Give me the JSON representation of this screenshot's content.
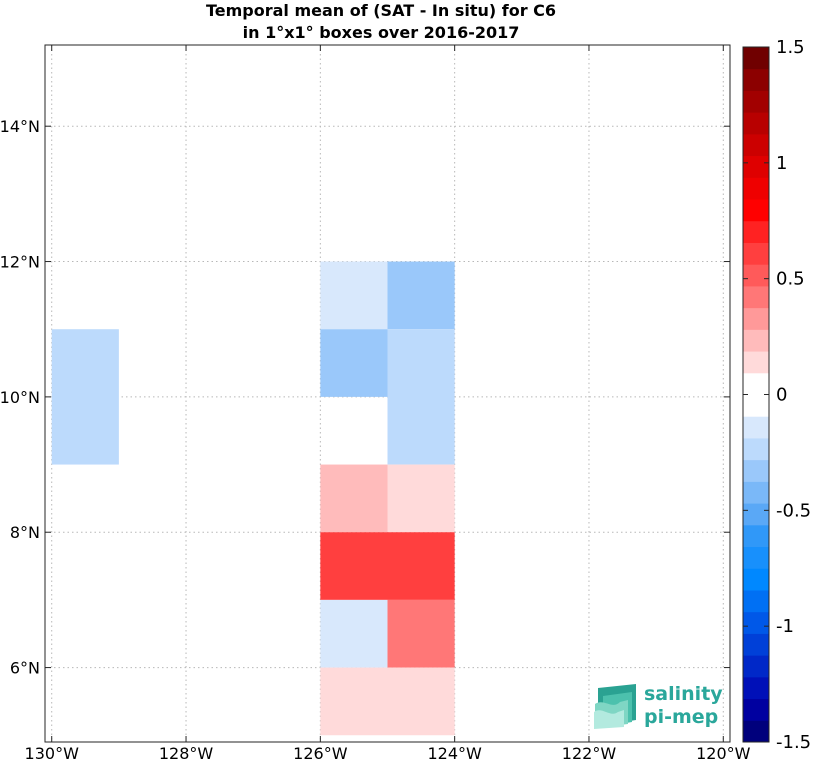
{
  "chart_data": {
    "type": "heatmap",
    "title_line1": "Temporal mean of (SAT - In situ) for C6",
    "title_line2": "in 1°x1° boxes over 2016-2017",
    "xlim": [
      -130.1,
      -119.9
    ],
    "ylim": [
      4.9,
      15.2
    ],
    "x_ticks": [
      -130,
      -128,
      -126,
      -124,
      -122,
      -120
    ],
    "x_tick_labels": [
      "130°W",
      "128°W",
      "126°W",
      "124°W",
      "122°W",
      "120°W"
    ],
    "y_ticks": [
      6,
      8,
      10,
      12,
      14
    ],
    "y_tick_labels": [
      "6°N",
      "8°N",
      "10°N",
      "12°N",
      "14°N"
    ],
    "grid": true,
    "cells": [
      {
        "lon": [
          -130,
          -129
        ],
        "lat": [
          9,
          11
        ],
        "value": -0.25
      },
      {
        "lon": [
          -126,
          -125
        ],
        "lat": [
          11,
          12
        ],
        "value": -0.15
      },
      {
        "lon": [
          -125,
          -124
        ],
        "lat": [
          11,
          12
        ],
        "value": -0.35
      },
      {
        "lon": [
          -126,
          -125
        ],
        "lat": [
          10,
          11
        ],
        "value": -0.35
      },
      {
        "lon": [
          -125,
          -124
        ],
        "lat": [
          9,
          11
        ],
        "value": -0.25
      },
      {
        "lon": [
          -126,
          -125
        ],
        "lat": [
          8,
          9
        ],
        "value": 0.25
      },
      {
        "lon": [
          -125,
          -124
        ],
        "lat": [
          8,
          9
        ],
        "value": 0.15
      },
      {
        "lon": [
          -126,
          -124
        ],
        "lat": [
          7,
          8
        ],
        "value": 0.65
      },
      {
        "lon": [
          -126,
          -125
        ],
        "lat": [
          6,
          7
        ],
        "value": -0.15
      },
      {
        "lon": [
          -125,
          -124
        ],
        "lat": [
          6,
          7
        ],
        "value": 0.45
      },
      {
        "lon": [
          -126,
          -124
        ],
        "lat": [
          5,
          6
        ],
        "value": 0.15
      }
    ],
    "colorbar": {
      "range": [
        -1.5,
        1.5
      ],
      "ticks": [
        -1.5,
        -1,
        -0.5,
        0,
        0.5,
        1,
        1.5
      ],
      "tick_labels": [
        "-1.5",
        "-1",
        "-0.5",
        "0",
        "0.5",
        "1",
        "1.5"
      ],
      "colors_bottom_to_top": [
        "#00007c",
        "#0000a0",
        "#0010b8",
        "#0028c8",
        "#0040d8",
        "#0058e8",
        "#0070f4",
        "#0088ff",
        "#1890fc",
        "#3098f8",
        "#5aa8f6",
        "#7ab8f8",
        "#9ac8fa",
        "#bcdafc",
        "#d8e8fc",
        "#ffffff",
        "#ffffff",
        "#ffdada",
        "#ffbbbb",
        "#ff9999",
        "#ff7777",
        "#ff5a5a",
        "#ff3f3f",
        "#ff2222",
        "#ff0000",
        "#ef0000",
        "#df0000",
        "#cc0000",
        "#b80000",
        "#a20000",
        "#8c0000",
        "#700000"
      ]
    }
  },
  "logo": {
    "line1": "salinity",
    "line2": "pi-mep"
  }
}
